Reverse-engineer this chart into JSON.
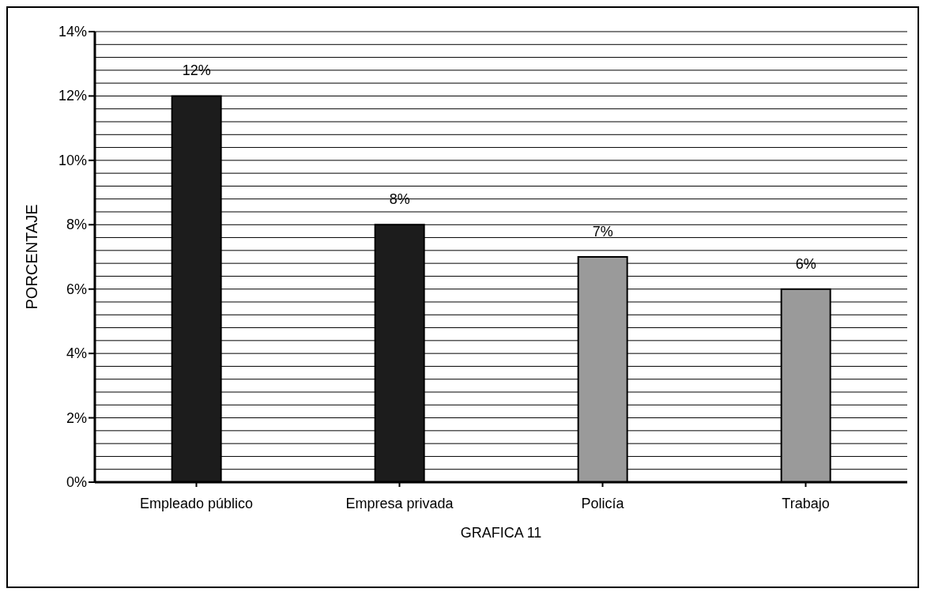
{
  "chart_data": {
    "type": "bar",
    "xlabel": "GRAFICA 11",
    "ylabel": "PORCENTAJE",
    "categories": [
      "Empleado público",
      "Empresa privada",
      "Policía",
      "Trabajo"
    ],
    "values": [
      12,
      8,
      7,
      6
    ],
    "colors": [
      "#1c1c1c",
      "#1c1c1c",
      "#9a9a9a",
      "#9a9a9a"
    ],
    "value_labels": [
      "12%",
      "8%",
      "7%",
      "6%"
    ],
    "ylim": [
      0,
      14
    ],
    "yticks": [
      {
        "value": 0,
        "label": "0%"
      },
      {
        "value": 0.4,
        "label": null
      },
      {
        "value": 0.8,
        "label": null
      },
      {
        "value": 1.2,
        "label": null
      },
      {
        "value": 1.6,
        "label": null
      },
      {
        "value": 2,
        "label": "2%"
      },
      {
        "value": 2.4,
        "label": null
      },
      {
        "value": 2.8,
        "label": null
      },
      {
        "value": 3.2,
        "label": null
      },
      {
        "value": 3.6,
        "label": null
      },
      {
        "value": 4,
        "label": "4%"
      },
      {
        "value": 4.4,
        "label": null
      },
      {
        "value": 4.8,
        "label": null
      },
      {
        "value": 5.2,
        "label": null
      },
      {
        "value": 5.6,
        "label": null
      },
      {
        "value": 6,
        "label": "6%"
      },
      {
        "value": 6.4,
        "label": null
      },
      {
        "value": 6.8,
        "label": null
      },
      {
        "value": 7.2,
        "label": null
      },
      {
        "value": 7.6,
        "label": null
      },
      {
        "value": 8,
        "label": "8%"
      },
      {
        "value": 8.4,
        "label": null
      },
      {
        "value": 8.8,
        "label": null
      },
      {
        "value": 9.2,
        "label": null
      },
      {
        "value": 9.6,
        "label": null
      },
      {
        "value": 10,
        "label": "10%"
      },
      {
        "value": 10.4,
        "label": null
      },
      {
        "value": 10.8,
        "label": null
      },
      {
        "value": 11.2,
        "label": null
      },
      {
        "value": 11.6,
        "label": null
      },
      {
        "value": 12,
        "label": "12%"
      },
      {
        "value": 12.4,
        "label": null
      },
      {
        "value": 12.8,
        "label": null
      },
      {
        "value": 13.2,
        "label": null
      },
      {
        "value": 13.6,
        "label": null
      },
      {
        "value": 14,
        "label": "14%"
      }
    ],
    "grid": "y"
  }
}
